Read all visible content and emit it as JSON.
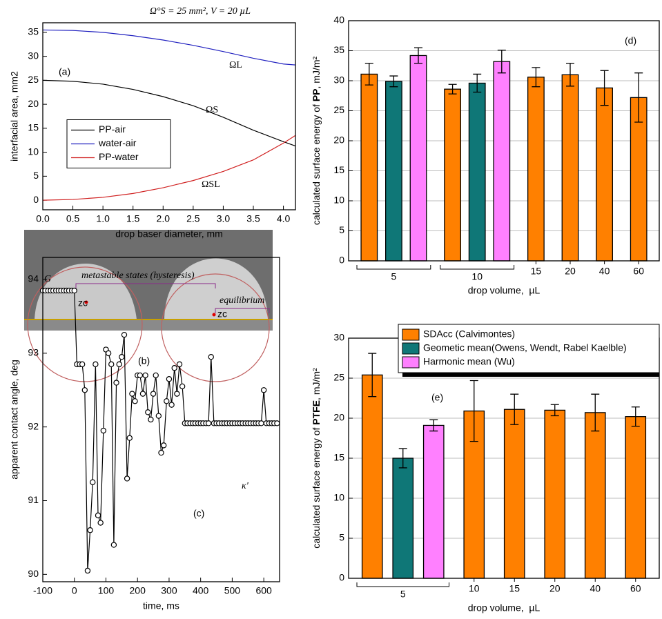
{
  "chart_data": [
    {
      "type": "line",
      "title": "Ω°S = 25 mm², V = 20 µL",
      "xlabel": "drop baser diameter, mm",
      "ylabel": "interfacial area, mm2",
      "annotations": [
        "(a)",
        "ΩL",
        "ΩS",
        "ΩSL"
      ],
      "x": [
        0,
        0.5,
        1,
        1.5,
        2,
        2.5,
        3,
        3.5,
        4,
        4.2
      ],
      "series": [
        {
          "name": "PP-air",
          "color": "#000000",
          "values": [
            25,
            24.8,
            24.2,
            23.1,
            21.6,
            19.7,
            17.3,
            14.6,
            12.2,
            11.3
          ]
        },
        {
          "name": "water-air",
          "color": "#1f1fbf",
          "values": [
            35.5,
            35.4,
            35.0,
            34.3,
            33.4,
            32.3,
            31.0,
            29.6,
            28.4,
            28.2
          ]
        },
        {
          "name": "PP-water",
          "color": "#d01f1f",
          "values": [
            0,
            0.15,
            0.6,
            1.4,
            2.6,
            4.1,
            6.0,
            8.4,
            11.9,
            13.5
          ]
        }
      ],
      "xlim": [
        0,
        4.2
      ],
      "xticks": [
        {
          "value": 0,
          "label": "0.0"
        },
        {
          "value": 0.5,
          "label": "0.5"
        },
        {
          "value": 1,
          "label": "1.0"
        },
        {
          "value": 1.5,
          "label": "1.5"
        },
        {
          "value": 2,
          "label": "2.0"
        },
        {
          "value": 2.5,
          "label": "2.5"
        },
        {
          "value": 3,
          "label": "3.0"
        },
        {
          "value": 3.5,
          "label": "3.5"
        },
        {
          "value": 4,
          "label": "4.0"
        }
      ],
      "ylim": [
        -2,
        37
      ],
      "yticks": [
        0,
        5,
        10,
        15,
        20,
        25,
        30,
        35
      ],
      "grid": false,
      "legend": "center left"
    },
    {
      "type": "line",
      "xlabel": "time, ms",
      "ylabel": "apparent contact angle, deg",
      "annotations": [
        "G",
        "metastable states (hysteresis)",
        "equilibrium",
        "κ'",
        "(c)"
      ],
      "markers": true,
      "x": [
        -100,
        -92,
        -83,
        -75,
        -67,
        -58,
        -50,
        -42,
        -33,
        -25,
        -17,
        -8,
        0,
        8,
        17,
        25,
        33,
        42,
        50,
        58,
        67,
        75,
        83,
        92,
        100,
        108,
        117,
        125,
        133,
        142,
        150,
        158,
        167,
        175,
        183,
        192,
        200,
        208,
        217,
        225,
        233,
        242,
        250,
        258,
        267,
        275,
        283,
        292,
        300,
        308,
        317,
        325,
        333,
        342,
        350,
        358,
        367,
        375,
        383,
        392,
        400,
        408,
        417,
        425,
        433,
        442,
        450,
        458,
        467,
        475,
        483,
        492,
        500,
        508,
        517,
        525,
        533,
        542,
        550,
        558,
        567,
        575,
        583,
        592,
        600,
        608,
        617,
        625,
        633,
        642
      ],
      "series": [
        {
          "color": "#000000",
          "values": [
            93.85,
            93.85,
            93.85,
            93.85,
            93.85,
            93.85,
            93.85,
            93.85,
            93.85,
            93.85,
            93.85,
            93.85,
            93.85,
            92.85,
            92.85,
            92.85,
            92.5,
            90.05,
            90.6,
            91.25,
            92.85,
            90.8,
            90.7,
            91.95,
            93.05,
            93.0,
            92.85,
            90.4,
            92.6,
            92.85,
            92.95,
            93.25,
            91.3,
            91.85,
            92.45,
            92.35,
            92.7,
            92.7,
            92.45,
            92.7,
            92.2,
            92.1,
            92.45,
            92.7,
            92.15,
            91.65,
            91.75,
            92.35,
            92.65,
            92.3,
            92.8,
            92.45,
            92.85,
            92.55,
            92.05,
            92.05,
            92.05,
            92.05,
            92.05,
            92.05,
            92.05,
            92.05,
            92.05,
            92.05,
            92.95,
            92.05,
            92.05,
            92.05,
            92.05,
            92.05,
            92.05,
            92.05,
            92.05,
            92.05,
            92.05,
            92.05,
            92.05,
            92.05,
            92.05,
            92.05,
            92.05,
            92.05,
            92.05,
            92.05,
            92.5,
            92.05,
            92.05,
            92.05,
            92.05,
            92.05
          ]
        }
      ],
      "xlim": [
        -100,
        650
      ],
      "xticks": [
        -100,
        0,
        100,
        200,
        300,
        400,
        500,
        600
      ],
      "ylim": [
        89.9,
        94.3
      ],
      "yticks": [
        90,
        91,
        92,
        93,
        94
      ],
      "grid": false
    },
    {
      "type": "bar",
      "xlabel": "drop volume,  µL",
      "ylabel": [
        "calculated surface energy of ",
        "PP",
        ", mJ/m²"
      ],
      "annotations": [
        "(d)"
      ],
      "categories": [
        "5",
        "10",
        "15",
        "20",
        "40",
        "60"
      ],
      "series": [
        {
          "color": "#ff8000",
          "values": [
            31.1,
            28.6,
            30.6,
            31.0,
            28.8,
            27.2
          ],
          "errors": [
            1.8,
            0.8,
            1.6,
            1.9,
            2.9,
            4.1
          ]
        },
        {
          "color": "#0f7777",
          "values": [
            29.9,
            29.6,
            null,
            null,
            null,
            null
          ],
          "errors": [
            0.9,
            1.5,
            null,
            null,
            null,
            null
          ]
        },
        {
          "color": "#ff80ff",
          "values": [
            34.2,
            33.2,
            null,
            null,
            null,
            null
          ],
          "errors": [
            1.3,
            1.9,
            null,
            null,
            null,
            null
          ]
        }
      ],
      "ylim": [
        0,
        40
      ],
      "yticks": [
        0,
        5,
        10,
        15,
        20,
        25,
        30,
        35,
        40
      ],
      "grid": true
    },
    {
      "type": "bar",
      "xlabel": "drop volume,  µL",
      "ylabel": [
        "calculated surface energy of ",
        "PTFE",
        ", mJ/m²"
      ],
      "annotations": [
        "(e)"
      ],
      "categories": [
        "5",
        "10",
        "15",
        "20",
        "40",
        "60"
      ],
      "series": [
        {
          "name": "SDAcc (Calvimontes)",
          "color": "#ff8000",
          "values": [
            25.4,
            20.9,
            21.1,
            21.0,
            20.7,
            20.2
          ],
          "errors": [
            2.7,
            3.8,
            1.9,
            0.7,
            2.3,
            1.2
          ]
        },
        {
          "name": "Geometic mean(Owens, Wendt, Rabel Kaelble)",
          "color": "#0f7777",
          "values": [
            15.0,
            null,
            null,
            null,
            null,
            null
          ],
          "errors": [
            1.2,
            null,
            null,
            null,
            null,
            null
          ]
        },
        {
          "name": "Harmonic mean (Wu)",
          "color": "#ff80ff",
          "values": [
            19.1,
            null,
            null,
            null,
            null,
            null
          ],
          "errors": [
            0.7,
            null,
            null,
            null,
            null,
            null
          ]
        }
      ],
      "ylim": [
        0,
        30
      ],
      "yticks": [
        0,
        5,
        10,
        15,
        20,
        25,
        30
      ],
      "grid": true,
      "legend": "upper right"
    }
  ],
  "image_panel": {
    "label": "(b)",
    "markers": [
      "zc",
      "zc"
    ]
  }
}
